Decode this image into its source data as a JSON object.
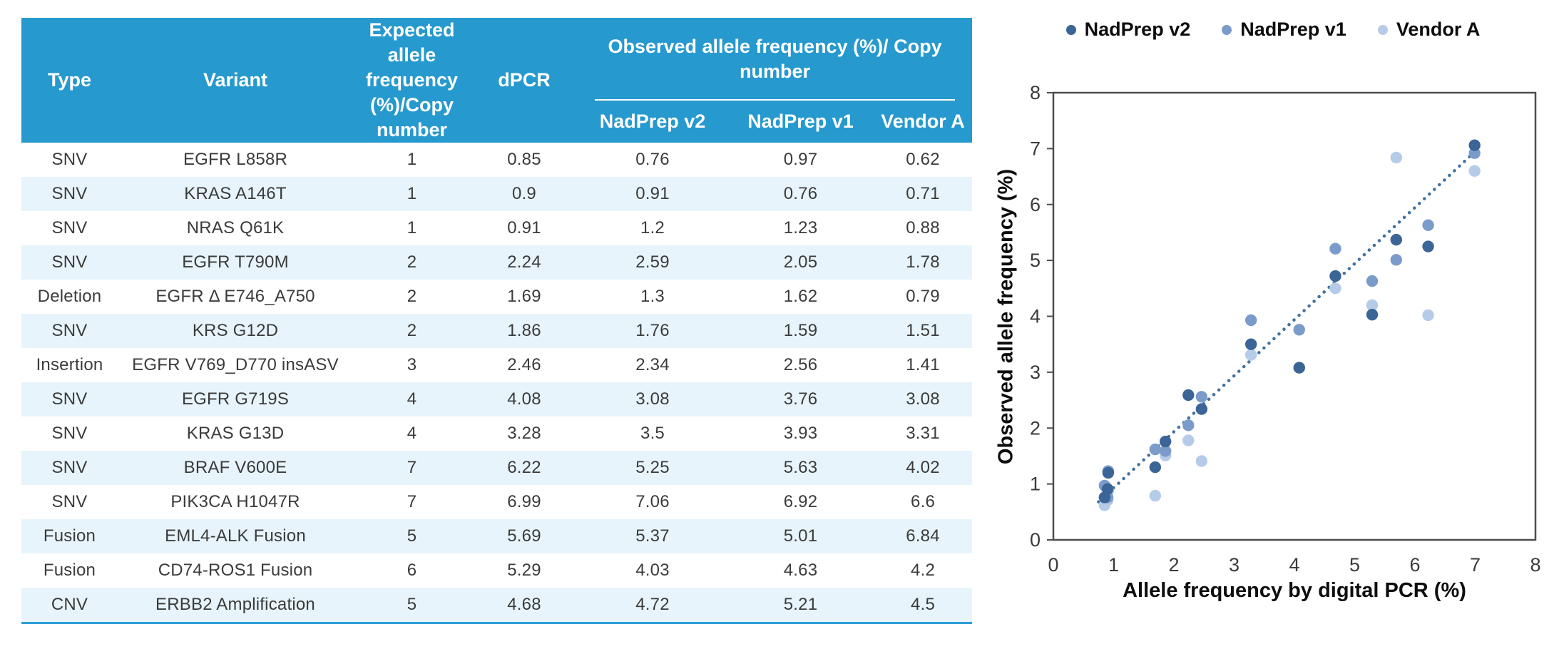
{
  "table": {
    "header": {
      "type": "Type",
      "variant": "Variant",
      "expected": "Expected allele frequency (%)/Copy number",
      "dpcr": "dPCR",
      "observed_group": "Observed allele frequency (%)/ Copy number",
      "sub": [
        "NadPrep v2",
        "NadPrep v1",
        "Vendor A"
      ]
    },
    "rows": [
      {
        "type": "SNV",
        "variant": "EGFR L858R",
        "expected": "1",
        "dpcr": "0.85",
        "nadprep_v2": "0.76",
        "nadprep_v1": "0.97",
        "vendor_a": "0.62"
      },
      {
        "type": "SNV",
        "variant": "KRAS A146T",
        "expected": "1",
        "dpcr": "0.9",
        "nadprep_v2": "0.91",
        "nadprep_v1": "0.76",
        "vendor_a": "0.71"
      },
      {
        "type": "SNV",
        "variant": "NRAS Q61K",
        "expected": "1",
        "dpcr": "0.91",
        "nadprep_v2": "1.2",
        "nadprep_v1": "1.23",
        "vendor_a": "0.88"
      },
      {
        "type": "SNV",
        "variant": "EGFR T790M",
        "expected": "2",
        "dpcr": "2.24",
        "nadprep_v2": "2.59",
        "nadprep_v1": "2.05",
        "vendor_a": "1.78"
      },
      {
        "type": "Deletion",
        "variant": "EGFR Δ E746_A750",
        "expected": "2",
        "dpcr": "1.69",
        "nadprep_v2": "1.3",
        "nadprep_v1": "1.62",
        "vendor_a": "0.79"
      },
      {
        "type": "SNV",
        "variant": "KRS G12D",
        "expected": "2",
        "dpcr": "1.86",
        "nadprep_v2": "1.76",
        "nadprep_v1": "1.59",
        "vendor_a": "1.51"
      },
      {
        "type": "Insertion",
        "variant": "EGFR V769_D770 insASV",
        "expected": "3",
        "dpcr": "2.46",
        "nadprep_v2": "2.34",
        "nadprep_v1": "2.56",
        "vendor_a": "1.41"
      },
      {
        "type": "SNV",
        "variant": "EGFR G719S",
        "expected": "4",
        "dpcr": "4.08",
        "nadprep_v2": "3.08",
        "nadprep_v1": "3.76",
        "vendor_a": "3.08"
      },
      {
        "type": "SNV",
        "variant": "KRAS G13D",
        "expected": "4",
        "dpcr": "3.28",
        "nadprep_v2": "3.5",
        "nadprep_v1": "3.93",
        "vendor_a": "3.31"
      },
      {
        "type": "SNV",
        "variant": "BRAF V600E",
        "expected": "7",
        "dpcr": "6.22",
        "nadprep_v2": "5.25",
        "nadprep_v1": "5.63",
        "vendor_a": "4.02"
      },
      {
        "type": "SNV",
        "variant": "PIK3CA H1047R",
        "expected": "7",
        "dpcr": "6.99",
        "nadprep_v2": "7.06",
        "nadprep_v1": "6.92",
        "vendor_a": "6.6"
      },
      {
        "type": "Fusion",
        "variant": "EML4-ALK Fusion",
        "expected": "5",
        "dpcr": "5.69",
        "nadprep_v2": "5.37",
        "nadprep_v1": "5.01",
        "vendor_a": "6.84"
      },
      {
        "type": "Fusion",
        "variant": "CD74-ROS1 Fusion",
        "expected": "6",
        "dpcr": "5.29",
        "nadprep_v2": "4.03",
        "nadprep_v1": "4.63",
        "vendor_a": "4.2"
      },
      {
        "type": "CNV",
        "variant": "ERBB2 Amplification",
        "expected": "5",
        "dpcr": "4.68",
        "nadprep_v2": "4.72",
        "nadprep_v1": "5.21",
        "vendor_a": "4.5"
      }
    ]
  },
  "chart_data": {
    "type": "scatter",
    "xlabel": "Allele frequency by digital PCR (%)",
    "ylabel": "Observed allele frequency (%)",
    "xlim": [
      0,
      8
    ],
    "ylim": [
      0,
      8
    ],
    "xticks": [
      0,
      1,
      2,
      3,
      4,
      5,
      6,
      7,
      8
    ],
    "yticks": [
      0,
      1,
      2,
      3,
      4,
      5,
      6,
      7,
      8
    ],
    "grid": false,
    "legend_position": "top",
    "series": [
      {
        "name": "NadPrep v2",
        "color": "#3B6596",
        "x": [
          0.85,
          0.9,
          0.91,
          2.24,
          1.69,
          1.86,
          2.46,
          4.08,
          3.28,
          6.22,
          6.99,
          5.69,
          5.29,
          4.68
        ],
        "y": [
          0.76,
          0.91,
          1.2,
          2.59,
          1.3,
          1.76,
          2.34,
          3.08,
          3.5,
          5.25,
          7.06,
          5.37,
          4.03,
          4.72
        ]
      },
      {
        "name": "NadPrep v1",
        "color": "#7B9CCA",
        "x": [
          0.85,
          0.9,
          0.91,
          2.24,
          1.69,
          1.86,
          2.46,
          4.08,
          3.28,
          6.22,
          6.99,
          5.69,
          5.29,
          4.68
        ],
        "y": [
          0.97,
          0.76,
          1.23,
          2.05,
          1.62,
          1.59,
          2.56,
          3.76,
          3.93,
          5.63,
          6.92,
          5.01,
          4.63,
          5.21
        ]
      },
      {
        "name": "Vendor A",
        "color": "#B6CBE8",
        "x": [
          0.85,
          0.9,
          0.91,
          2.24,
          1.69,
          1.86,
          2.46,
          4.08,
          3.28,
          6.22,
          6.99,
          5.69,
          5.29,
          4.68
        ],
        "y": [
          0.62,
          0.71,
          0.88,
          1.78,
          0.79,
          1.51,
          1.41,
          3.08,
          3.31,
          4.02,
          6.6,
          6.84,
          4.2,
          4.5
        ]
      }
    ],
    "trendline": {
      "style": "dotted",
      "color": "#41719F",
      "x1": 0.75,
      "y1": 0.68,
      "x2": 7.05,
      "y2": 7.0
    }
  },
  "colors": {
    "table_header_bg": "#2699CE",
    "row_stripe": "#E7F4FB",
    "table_bottom_border": "#2D9FD8",
    "plot_border": "#4D4D4D",
    "tick_label": "#3A3A3A"
  }
}
